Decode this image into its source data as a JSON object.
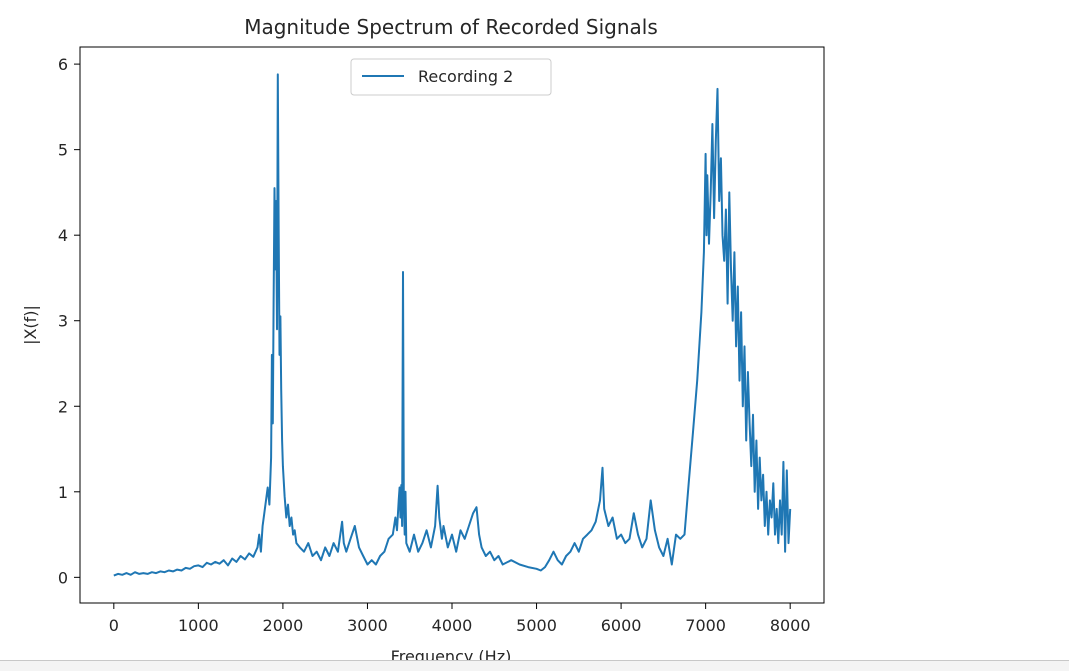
{
  "chart_data": {
    "type": "line",
    "title": "Magnitude Spectrum of Recorded Signals",
    "xlabel": "Frequency (Hz)",
    "ylabel": "|X(f)|",
    "xlim": [
      -400,
      8400
    ],
    "ylim": [
      -0.3,
      6.2
    ],
    "xticks": [
      0,
      1000,
      2000,
      3000,
      4000,
      5000,
      6000,
      7000,
      8000
    ],
    "xtick_labels": [
      "0",
      "1000",
      "2000",
      "3000",
      "4000",
      "5000",
      "6000",
      "7000",
      "8000"
    ],
    "yticks": [
      0,
      1,
      2,
      3,
      4,
      5,
      6
    ],
    "ytick_labels": [
      "0",
      "1",
      "2",
      "3",
      "4",
      "5",
      "6"
    ],
    "grid": false,
    "legend_position": "upper-center",
    "series": [
      {
        "name": "Recording 2",
        "color": "#1f77b4",
        "points": [
          [
            0,
            0.02
          ],
          [
            50,
            0.04
          ],
          [
            100,
            0.03
          ],
          [
            150,
            0.05
          ],
          [
            200,
            0.03
          ],
          [
            250,
            0.06
          ],
          [
            300,
            0.04
          ],
          [
            350,
            0.05
          ],
          [
            400,
            0.04
          ],
          [
            450,
            0.06
          ],
          [
            500,
            0.05
          ],
          [
            550,
            0.07
          ],
          [
            600,
            0.06
          ],
          [
            650,
            0.08
          ],
          [
            700,
            0.07
          ],
          [
            750,
            0.09
          ],
          [
            800,
            0.08
          ],
          [
            850,
            0.11
          ],
          [
            900,
            0.1
          ],
          [
            950,
            0.13
          ],
          [
            1000,
            0.14
          ],
          [
            1050,
            0.12
          ],
          [
            1100,
            0.17
          ],
          [
            1150,
            0.15
          ],
          [
            1200,
            0.18
          ],
          [
            1250,
            0.16
          ],
          [
            1300,
            0.2
          ],
          [
            1350,
            0.14
          ],
          [
            1400,
            0.22
          ],
          [
            1450,
            0.18
          ],
          [
            1500,
            0.25
          ],
          [
            1550,
            0.21
          ],
          [
            1600,
            0.28
          ],
          [
            1650,
            0.24
          ],
          [
            1700,
            0.35
          ],
          [
            1720,
            0.5
          ],
          [
            1740,
            0.3
          ],
          [
            1760,
            0.6
          ],
          [
            1780,
            0.75
          ],
          [
            1800,
            0.9
          ],
          [
            1820,
            1.05
          ],
          [
            1840,
            0.85
          ],
          [
            1860,
            1.4
          ],
          [
            1870,
            2.6
          ],
          [
            1880,
            1.8
          ],
          [
            1890,
            3.2
          ],
          [
            1900,
            4.55
          ],
          [
            1910,
            3.6
          ],
          [
            1920,
            4.4
          ],
          [
            1930,
            2.9
          ],
          [
            1940,
            5.88
          ],
          [
            1950,
            4.0
          ],
          [
            1960,
            2.6
          ],
          [
            1970,
            3.05
          ],
          [
            1980,
            2.2
          ],
          [
            1990,
            1.6
          ],
          [
            2000,
            1.3
          ],
          [
            2020,
            0.95
          ],
          [
            2040,
            0.7
          ],
          [
            2060,
            0.85
          ],
          [
            2080,
            0.6
          ],
          [
            2100,
            0.7
          ],
          [
            2120,
            0.5
          ],
          [
            2140,
            0.55
          ],
          [
            2160,
            0.4
          ],
          [
            2200,
            0.35
          ],
          [
            2250,
            0.3
          ],
          [
            2300,
            0.4
          ],
          [
            2350,
            0.25
          ],
          [
            2400,
            0.3
          ],
          [
            2450,
            0.2
          ],
          [
            2500,
            0.35
          ],
          [
            2550,
            0.25
          ],
          [
            2600,
            0.4
          ],
          [
            2650,
            0.3
          ],
          [
            2700,
            0.65
          ],
          [
            2720,
            0.4
          ],
          [
            2750,
            0.3
          ],
          [
            2800,
            0.45
          ],
          [
            2850,
            0.6
          ],
          [
            2900,
            0.35
          ],
          [
            2950,
            0.25
          ],
          [
            3000,
            0.15
          ],
          [
            3050,
            0.2
          ],
          [
            3100,
            0.15
          ],
          [
            3150,
            0.25
          ],
          [
            3200,
            0.3
          ],
          [
            3250,
            0.45
          ],
          [
            3300,
            0.5
          ],
          [
            3330,
            0.7
          ],
          [
            3350,
            0.55
          ],
          [
            3370,
            0.9
          ],
          [
            3380,
            1.05
          ],
          [
            3390,
            0.7
          ],
          [
            3400,
            1.08
          ],
          [
            3410,
            0.6
          ],
          [
            3420,
            3.57
          ],
          [
            3430,
            0.9
          ],
          [
            3440,
            0.5
          ],
          [
            3450,
            1.0
          ],
          [
            3460,
            0.4
          ],
          [
            3500,
            0.3
          ],
          [
            3550,
            0.5
          ],
          [
            3600,
            0.3
          ],
          [
            3650,
            0.4
          ],
          [
            3700,
            0.55
          ],
          [
            3750,
            0.35
          ],
          [
            3800,
            0.6
          ],
          [
            3830,
            1.07
          ],
          [
            3850,
            0.7
          ],
          [
            3880,
            0.45
          ],
          [
            3900,
            0.6
          ],
          [
            3950,
            0.35
          ],
          [
            4000,
            0.5
          ],
          [
            4050,
            0.3
          ],
          [
            4100,
            0.55
          ],
          [
            4150,
            0.45
          ],
          [
            4200,
            0.6
          ],
          [
            4250,
            0.75
          ],
          [
            4290,
            0.82
          ],
          [
            4320,
            0.5
          ],
          [
            4350,
            0.35
          ],
          [
            4400,
            0.25
          ],
          [
            4450,
            0.3
          ],
          [
            4500,
            0.2
          ],
          [
            4550,
            0.25
          ],
          [
            4600,
            0.15
          ],
          [
            4700,
            0.2
          ],
          [
            4800,
            0.15
          ],
          [
            4900,
            0.12
          ],
          [
            5000,
            0.1
          ],
          [
            5050,
            0.08
          ],
          [
            5100,
            0.12
          ],
          [
            5150,
            0.2
          ],
          [
            5200,
            0.3
          ],
          [
            5250,
            0.2
          ],
          [
            5300,
            0.15
          ],
          [
            5350,
            0.25
          ],
          [
            5400,
            0.3
          ],
          [
            5450,
            0.4
          ],
          [
            5500,
            0.3
          ],
          [
            5550,
            0.45
          ],
          [
            5600,
            0.5
          ],
          [
            5650,
            0.55
          ],
          [
            5700,
            0.65
          ],
          [
            5750,
            0.9
          ],
          [
            5780,
            1.28
          ],
          [
            5800,
            0.8
          ],
          [
            5850,
            0.6
          ],
          [
            5900,
            0.7
          ],
          [
            5950,
            0.45
          ],
          [
            6000,
            0.5
          ],
          [
            6050,
            0.4
          ],
          [
            6100,
            0.45
          ],
          [
            6150,
            0.75
          ],
          [
            6200,
            0.5
          ],
          [
            6250,
            0.35
          ],
          [
            6300,
            0.45
          ],
          [
            6350,
            0.9
          ],
          [
            6400,
            0.55
          ],
          [
            6450,
            0.35
          ],
          [
            6500,
            0.25
          ],
          [
            6550,
            0.45
          ],
          [
            6600,
            0.15
          ],
          [
            6650,
            0.5
          ],
          [
            6700,
            0.45
          ],
          [
            6750,
            0.5
          ],
          [
            6800,
            1.1
          ],
          [
            6850,
            1.7
          ],
          [
            6900,
            2.3
          ],
          [
            6950,
            3.1
          ],
          [
            6980,
            3.8
          ],
          [
            7000,
            4.95
          ],
          [
            7010,
            4.0
          ],
          [
            7020,
            4.7
          ],
          [
            7040,
            3.9
          ],
          [
            7060,
            4.5
          ],
          [
            7080,
            5.3
          ],
          [
            7100,
            4.2
          ],
          [
            7120,
            5.1
          ],
          [
            7140,
            5.71
          ],
          [
            7160,
            4.4
          ],
          [
            7180,
            4.9
          ],
          [
            7200,
            4.0
          ],
          [
            7220,
            3.7
          ],
          [
            7240,
            4.3
          ],
          [
            7260,
            3.2
          ],
          [
            7280,
            4.5
          ],
          [
            7300,
            3.6
          ],
          [
            7320,
            3.0
          ],
          [
            7340,
            3.8
          ],
          [
            7360,
            2.7
          ],
          [
            7380,
            3.4
          ],
          [
            7400,
            2.3
          ],
          [
            7420,
            3.1
          ],
          [
            7440,
            2.0
          ],
          [
            7460,
            2.7
          ],
          [
            7480,
            1.6
          ],
          [
            7500,
            2.4
          ],
          [
            7520,
            1.8
          ],
          [
            7540,
            1.3
          ],
          [
            7560,
            1.9
          ],
          [
            7580,
            1.0
          ],
          [
            7600,
            1.6
          ],
          [
            7620,
            0.8
          ],
          [
            7640,
            1.4
          ],
          [
            7660,
            0.9
          ],
          [
            7680,
            1.2
          ],
          [
            7700,
            0.6
          ],
          [
            7720,
            1.0
          ],
          [
            7740,
            0.5
          ],
          [
            7760,
            0.9
          ],
          [
            7780,
            0.7
          ],
          [
            7800,
            1.1
          ],
          [
            7820,
            0.5
          ],
          [
            7840,
            0.8
          ],
          [
            7860,
            0.4
          ],
          [
            7880,
            0.9
          ],
          [
            7900,
            0.5
          ],
          [
            7920,
            1.35
          ],
          [
            7940,
            0.3
          ],
          [
            7960,
            1.25
          ],
          [
            7980,
            0.4
          ],
          [
            8000,
            0.8
          ]
        ]
      }
    ]
  }
}
